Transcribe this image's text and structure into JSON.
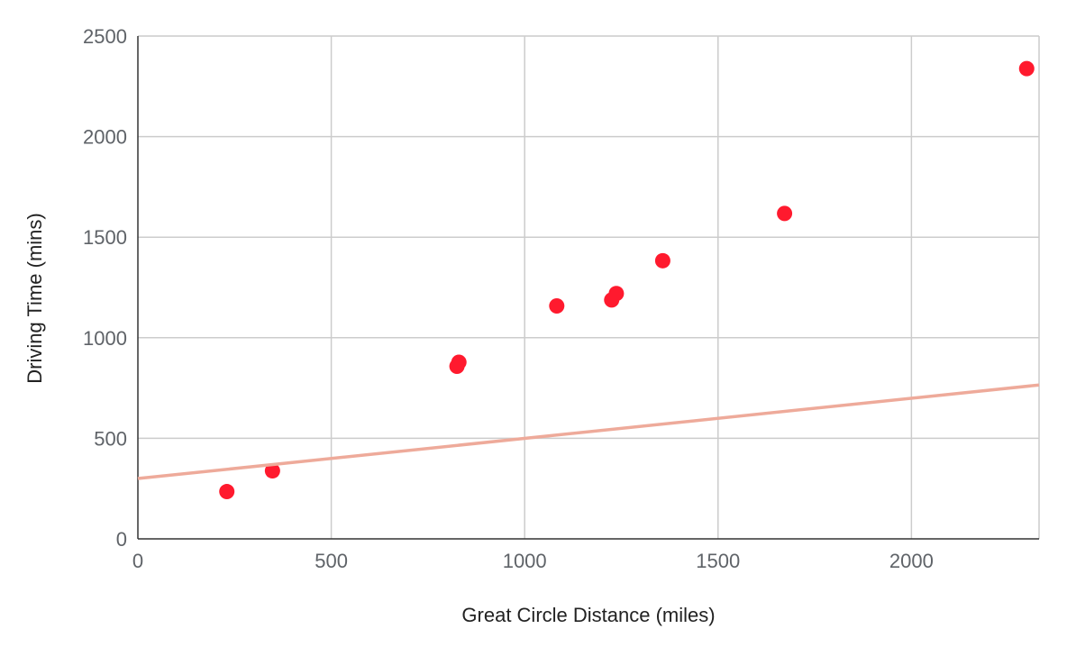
{
  "chart_data": {
    "type": "scatter",
    "xlabel": "Great Circle Distance (miles)",
    "ylabel": "Driving Time (mins)",
    "xlim": [
      0,
      2330
    ],
    "ylim": [
      0,
      2500
    ],
    "x_ticks": [
      "0",
      "500",
      "1000",
      "1500",
      "2000"
    ],
    "y_ticks": [
      "0",
      "500",
      "1000",
      "1500",
      "2000",
      "2500"
    ],
    "grid": true,
    "legend": "none",
    "series": [
      {
        "points": [
          {
            "x": 230,
            "y": 235
          },
          {
            "x": 348,
            "y": 338
          },
          {
            "x": 825,
            "y": 858
          },
          {
            "x": 830,
            "y": 878
          },
          {
            "x": 1083,
            "y": 1158
          },
          {
            "x": 1225,
            "y": 1188
          },
          {
            "x": 1237,
            "y": 1220
          },
          {
            "x": 1357,
            "y": 1383
          },
          {
            "x": 1672,
            "y": 1618
          },
          {
            "x": 2298,
            "y": 2338
          }
        ],
        "color": "#ff1a2e"
      },
      {
        "type": "line",
        "points": [
          {
            "x": 0,
            "y": 300
          },
          {
            "x": 2330,
            "y": 765
          }
        ],
        "color": "#eeaa9a"
      }
    ]
  }
}
